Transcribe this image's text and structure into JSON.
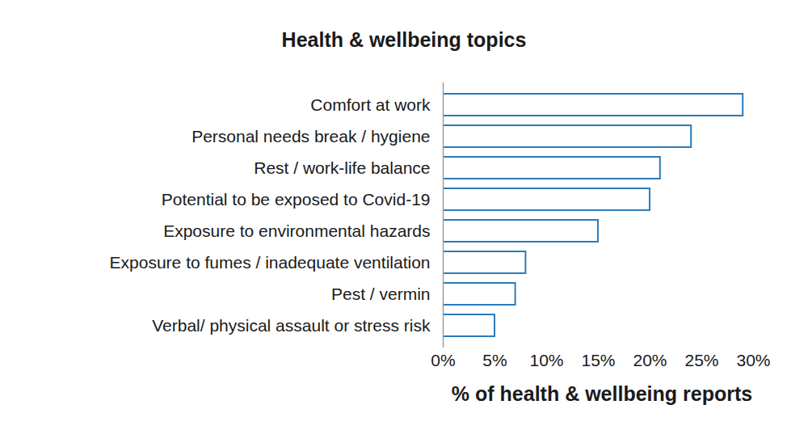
{
  "chart_data": {
    "type": "bar",
    "orientation": "horizontal",
    "title": "Health & wellbeing topics",
    "xlabel": "% of health & wellbeing reports",
    "categories": [
      "Comfort at work",
      "Personal needs break / hygiene",
      "Rest / work-life balance",
      "Potential to be exposed to Covid-19",
      "Exposure to environmental hazards",
      "Exposure to fumes / inadequate ventilation",
      "Pest / vermin",
      "Verbal/ physical assault or stress risk"
    ],
    "values": [
      29,
      24,
      21,
      20,
      15,
      8,
      7,
      5
    ],
    "color": "#2b7bb9",
    "xlim": [
      0,
      30
    ],
    "xticks": [
      {
        "value": 0,
        "label": "0%"
      },
      {
        "value": 5,
        "label": "5%"
      },
      {
        "value": 10,
        "label": "10%"
      },
      {
        "value": 15,
        "label": "15%"
      },
      {
        "value": 20,
        "label": "20%"
      },
      {
        "value": 25,
        "label": "25%"
      },
      {
        "value": 30,
        "label": "30%"
      }
    ],
    "grid": false
  }
}
